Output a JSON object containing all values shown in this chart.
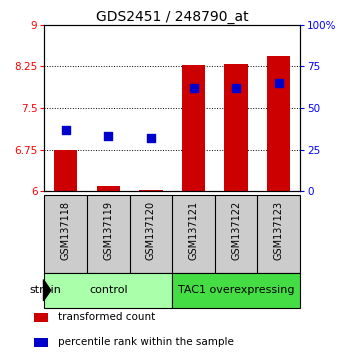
{
  "title": "GDS2451 / 248790_at",
  "samples": [
    "GSM137118",
    "GSM137119",
    "GSM137120",
    "GSM137121",
    "GSM137122",
    "GSM137123"
  ],
  "transformed_count": [
    6.75,
    6.1,
    6.02,
    8.28,
    8.29,
    8.43
  ],
  "percentile_rank": [
    37,
    33,
    32,
    62,
    62,
    65
  ],
  "ylim_left": [
    6,
    9
  ],
  "ylim_right": [
    0,
    100
  ],
  "yticks_left": [
    6,
    6.75,
    7.5,
    8.25,
    9
  ],
  "yticks_right": [
    0,
    25,
    50,
    75,
    100
  ],
  "ytick_labels_left": [
    "6",
    "6.75",
    "7.5",
    "8.25",
    "9"
  ],
  "ytick_labels_right": [
    "0",
    "25",
    "50",
    "75",
    "100%"
  ],
  "bar_color": "#cc0000",
  "dot_color": "#0000cc",
  "bar_bottom": 6.0,
  "groups": [
    {
      "label": "control",
      "indices": [
        0,
        1,
        2
      ],
      "color": "#aaffaa"
    },
    {
      "label": "TAC1 overexpressing",
      "indices": [
        3,
        4,
        5
      ],
      "color": "#44dd44"
    }
  ],
  "strain_label": "strain",
  "bar_width": 0.55,
  "dot_size": 40,
  "title_fontsize": 10,
  "tick_fontsize": 7.5,
  "sample_fontsize": 7,
  "group_fontsize": 8,
  "legend_fontsize": 7.5,
  "sample_box_color": "#cccccc",
  "figure_width": 3.41,
  "figure_height": 3.54
}
